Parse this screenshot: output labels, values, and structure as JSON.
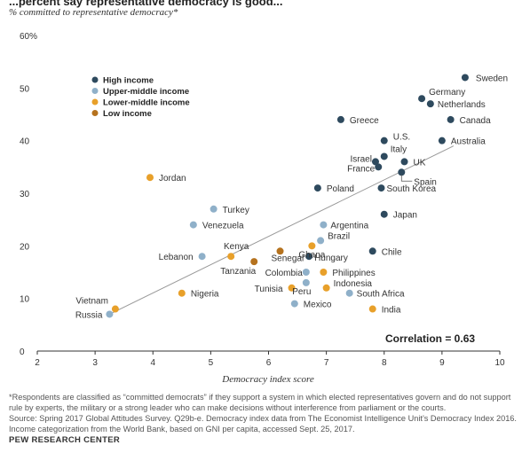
{
  "header_partial": "...percent say representative democracy is good...",
  "y_axis_title": "% committed to representative democracy*",
  "x_axis_title": "Democracy index score",
  "correlation_text": "Correlation = 0.63",
  "footnote": "*Respondents are classified as “committed democrats” if they support a system in which elected representatives govern and do not support rule by experts, the military or a strong leader who can make decisions without interference from parliament or the courts.",
  "source_lines": [
    "Source: Spring 2017 Global Attitudes Survey. Q29b-e. Democracy index data from The Economist Intelligence Unit’s Democracy Index 2016.",
    "Income categorization from the World Bank, based on GNI per capita, accessed Sept. 25, 2017."
  ],
  "organization": "PEW RESEARCH CENTER",
  "colors": {
    "high": "#2e4a5e",
    "upper_middle": "#8fb0c9",
    "lower_middle": "#e8a02a",
    "low": "#b5721e",
    "trend": "#999999"
  },
  "chart_data": {
    "type": "scatter",
    "xlabel": "Democracy index score",
    "ylabel": "% committed to representative democracy*",
    "xlim": [
      2,
      10
    ],
    "ylim": [
      0,
      60
    ],
    "x_ticks": [
      "2",
      "3",
      "4",
      "5",
      "6",
      "7",
      "8",
      "9",
      "10"
    ],
    "y_ticks": [
      "0",
      "10",
      "20",
      "30",
      "40",
      "50",
      "60%"
    ],
    "grid": false,
    "legend_position": "top-left",
    "legend": [
      {
        "key": "high",
        "label": "High income"
      },
      {
        "key": "upper_middle",
        "label": "Upper-middle income"
      },
      {
        "key": "lower_middle",
        "label": "Lower-middle income"
      },
      {
        "key": "low",
        "label": "Low income"
      }
    ],
    "trendline": {
      "x": [
        3.25,
        9.2
      ],
      "y": [
        7,
        39
      ]
    },
    "annotation": "Correlation = 0.63",
    "points": [
      {
        "label": "Sweden",
        "x": 9.4,
        "y": 52,
        "group": "high"
      },
      {
        "label": "Germany",
        "x": 8.65,
        "y": 48,
        "group": "high"
      },
      {
        "label": "Netherlands",
        "x": 8.8,
        "y": 47,
        "group": "high"
      },
      {
        "label": "Canada",
        "x": 9.15,
        "y": 44,
        "group": "high"
      },
      {
        "label": "Greece",
        "x": 7.25,
        "y": 44,
        "group": "high"
      },
      {
        "label": "U.S.",
        "x": 8.0,
        "y": 40,
        "group": "high"
      },
      {
        "label": "Australia",
        "x": 9.0,
        "y": 40,
        "group": "high"
      },
      {
        "label": "Italy",
        "x": 8.0,
        "y": 37,
        "group": "high"
      },
      {
        "label": "Israel",
        "x": 7.85,
        "y": 36,
        "group": "high"
      },
      {
        "label": "UK",
        "x": 8.35,
        "y": 36,
        "group": "high"
      },
      {
        "label": "France",
        "x": 7.9,
        "y": 35,
        "group": "high"
      },
      {
        "label": "Spain",
        "x": 8.3,
        "y": 34,
        "group": "high"
      },
      {
        "label": "Poland",
        "x": 6.85,
        "y": 31,
        "group": "high"
      },
      {
        "label": "South Korea",
        "x": 7.95,
        "y": 31,
        "group": "high"
      },
      {
        "label": "Japan",
        "x": 8.0,
        "y": 26,
        "group": "high"
      },
      {
        "label": "Chile",
        "x": 7.8,
        "y": 19,
        "group": "high"
      },
      {
        "label": "Hungary",
        "x": 6.7,
        "y": 18,
        "group": "high"
      },
      {
        "label": "Jordan",
        "x": 3.95,
        "y": 33,
        "group": "lower_middle"
      },
      {
        "label": "Turkey",
        "x": 5.05,
        "y": 27,
        "group": "upper_middle"
      },
      {
        "label": "Venezuela",
        "x": 4.7,
        "y": 24,
        "group": "upper_middle"
      },
      {
        "label": "Argentina",
        "x": 6.95,
        "y": 24,
        "group": "upper_middle"
      },
      {
        "label": "Brazil",
        "x": 6.9,
        "y": 21,
        "group": "upper_middle"
      },
      {
        "label": "Ghana",
        "x": 6.75,
        "y": 20,
        "group": "lower_middle"
      },
      {
        "label": "Kenya",
        "x": 5.35,
        "y": 18,
        "group": "lower_middle"
      },
      {
        "label": "Lebanon",
        "x": 4.85,
        "y": 18,
        "group": "upper_middle"
      },
      {
        "label": "Senegal",
        "x": 6.2,
        "y": 19,
        "group": "low"
      },
      {
        "label": "Tanzania",
        "x": 5.75,
        "y": 17,
        "group": "low"
      },
      {
        "label": "Colombia",
        "x": 6.65,
        "y": 15,
        "group": "upper_middle"
      },
      {
        "label": "Philippines",
        "x": 6.95,
        "y": 15,
        "group": "lower_middle"
      },
      {
        "label": "Tunisia",
        "x": 6.4,
        "y": 12,
        "group": "lower_middle"
      },
      {
        "label": "Peru",
        "x": 6.65,
        "y": 13,
        "group": "upper_middle"
      },
      {
        "label": "Indonesia",
        "x": 7.0,
        "y": 12,
        "group": "lower_middle"
      },
      {
        "label": "South Africa",
        "x": 7.4,
        "y": 11,
        "group": "upper_middle"
      },
      {
        "label": "Nigeria",
        "x": 4.5,
        "y": 11,
        "group": "lower_middle"
      },
      {
        "label": "Mexico",
        "x": 6.45,
        "y": 9,
        "group": "upper_middle"
      },
      {
        "label": "India",
        "x": 7.8,
        "y": 8,
        "group": "lower_middle"
      },
      {
        "label": "Vietnam",
        "x": 3.35,
        "y": 8,
        "group": "lower_middle"
      },
      {
        "label": "Russia",
        "x": 3.25,
        "y": 7,
        "group": "upper_middle"
      }
    ]
  }
}
